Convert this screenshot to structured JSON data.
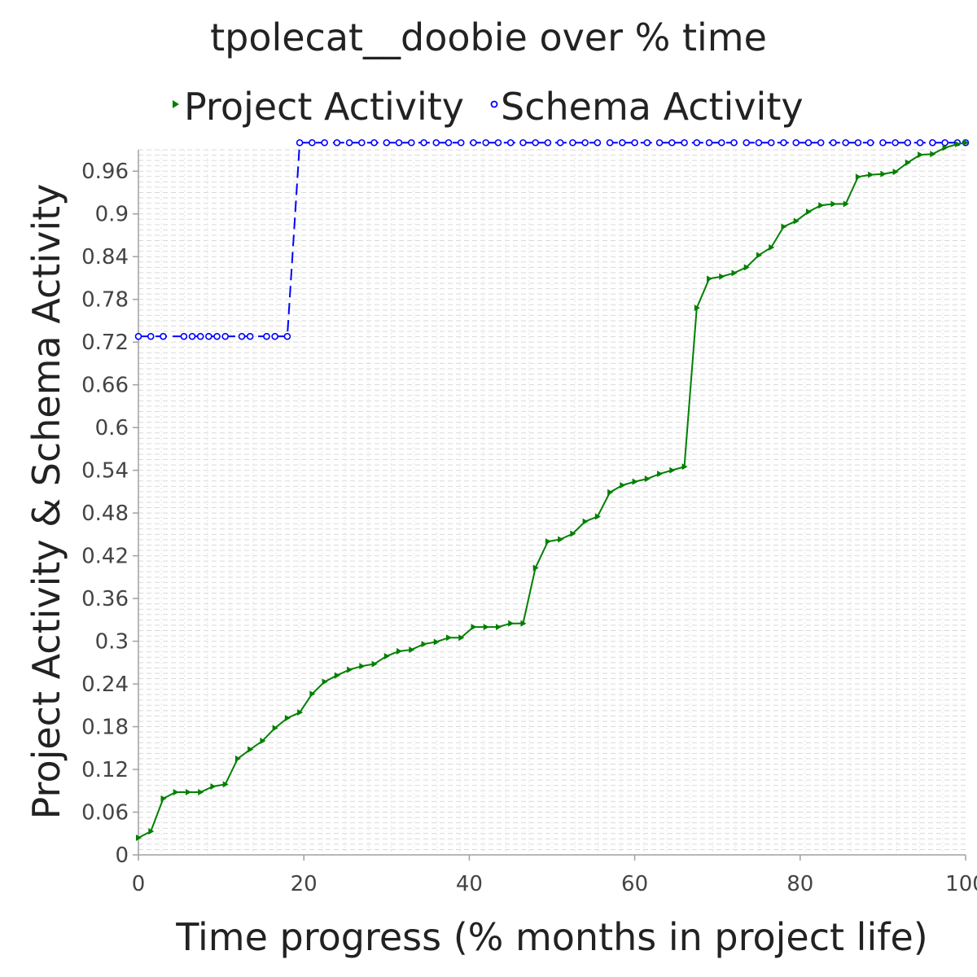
{
  "chart_data": {
    "type": "line",
    "title": "tpolecat__doobie over % time",
    "xlabel": "Time progress (% months in project life)",
    "ylabel": "Project Activity & Schema Activity",
    "xlim": [
      0,
      100
    ],
    "ylim": [
      0,
      0.99
    ],
    "x_ticks": [
      "0",
      "20",
      "40",
      "60",
      "80",
      "100"
    ],
    "y_ticks": [
      "0",
      "0.06",
      "0.12",
      "0.18",
      "0.24",
      "0.3",
      "0.36",
      "0.42",
      "0.48",
      "0.54",
      "0.6",
      "0.66",
      "0.72",
      "0.78",
      "0.84",
      "0.9",
      "0.96"
    ],
    "legend_position": "top",
    "grid": true,
    "series": [
      {
        "name": "Project Activity",
        "color": "#008000",
        "marker": "triangle-right",
        "line_style": "solid",
        "points": [
          [
            0,
            0.024
          ],
          [
            1.5,
            0.033
          ],
          [
            3.0,
            0.079
          ],
          [
            4.5,
            0.088
          ],
          [
            6.0,
            0.088
          ],
          [
            7.5,
            0.088
          ],
          [
            9.0,
            0.096
          ],
          [
            10.5,
            0.099
          ],
          [
            12.0,
            0.135
          ],
          [
            13.5,
            0.148
          ],
          [
            15.0,
            0.16
          ],
          [
            16.5,
            0.178
          ],
          [
            18.0,
            0.192
          ],
          [
            19.5,
            0.2
          ],
          [
            21.0,
            0.226
          ],
          [
            22.5,
            0.243
          ],
          [
            24.0,
            0.252
          ],
          [
            25.5,
            0.26
          ],
          [
            27.0,
            0.265
          ],
          [
            28.5,
            0.268
          ],
          [
            30.0,
            0.279
          ],
          [
            31.5,
            0.286
          ],
          [
            33.0,
            0.288
          ],
          [
            34.5,
            0.296
          ],
          [
            36.0,
            0.299
          ],
          [
            37.5,
            0.305
          ],
          [
            39.0,
            0.305
          ],
          [
            40.5,
            0.32
          ],
          [
            42.0,
            0.32
          ],
          [
            43.5,
            0.32
          ],
          [
            45.0,
            0.325
          ],
          [
            46.5,
            0.325
          ],
          [
            48.0,
            0.403
          ],
          [
            49.5,
            0.44
          ],
          [
            51.0,
            0.443
          ],
          [
            52.5,
            0.451
          ],
          [
            54.0,
            0.468
          ],
          [
            55.5,
            0.475
          ],
          [
            57.0,
            0.509
          ],
          [
            58.5,
            0.519
          ],
          [
            60.0,
            0.524
          ],
          [
            61.5,
            0.528
          ],
          [
            63.0,
            0.535
          ],
          [
            64.5,
            0.54
          ],
          [
            66.0,
            0.545
          ],
          [
            67.5,
            0.768
          ],
          [
            69.0,
            0.809
          ],
          [
            70.5,
            0.812
          ],
          [
            72.0,
            0.817
          ],
          [
            73.5,
            0.825
          ],
          [
            75.0,
            0.842
          ],
          [
            76.5,
            0.853
          ],
          [
            78.0,
            0.882
          ],
          [
            79.5,
            0.89
          ],
          [
            81.0,
            0.903
          ],
          [
            82.5,
            0.912
          ],
          [
            84.0,
            0.914
          ],
          [
            85.5,
            0.914
          ],
          [
            87.0,
            0.952
          ],
          [
            88.5,
            0.955
          ],
          [
            90.0,
            0.956
          ],
          [
            91.5,
            0.959
          ],
          [
            93.0,
            0.972
          ],
          [
            94.5,
            0.983
          ],
          [
            96.0,
            0.984
          ],
          [
            97.5,
            0.993
          ],
          [
            99.0,
            0.998
          ],
          [
            100,
            1.0
          ]
        ]
      },
      {
        "name": "Schema Activity",
        "color": "#0000ff",
        "marker": "circle",
        "line_style": "dashed",
        "points": [
          [
            0,
            0.728
          ],
          [
            1.5,
            0.728
          ],
          [
            3.0,
            0.728
          ],
          [
            5.5,
            0.728
          ],
          [
            6.5,
            0.728
          ],
          [
            7.5,
            0.728
          ],
          [
            8.5,
            0.728
          ],
          [
            9.5,
            0.728
          ],
          [
            10.5,
            0.728
          ],
          [
            12.5,
            0.728
          ],
          [
            13.5,
            0.728
          ],
          [
            15.5,
            0.728
          ],
          [
            16.5,
            0.728
          ],
          [
            18.0,
            0.728
          ],
          [
            19.5,
            1.0
          ],
          [
            21.0,
            1.0
          ],
          [
            22.5,
            1.0
          ],
          [
            24.0,
            1.0
          ],
          [
            25.5,
            1.0
          ],
          [
            27.0,
            1.0
          ],
          [
            28.5,
            1.0
          ],
          [
            30.0,
            1.0
          ],
          [
            31.5,
            1.0
          ],
          [
            33.0,
            1.0
          ],
          [
            34.5,
            1.0
          ],
          [
            36.0,
            1.0
          ],
          [
            37.5,
            1.0
          ],
          [
            39.0,
            1.0
          ],
          [
            40.5,
            1.0
          ],
          [
            42.0,
            1.0
          ],
          [
            43.5,
            1.0
          ],
          [
            45.0,
            1.0
          ],
          [
            46.5,
            1.0
          ],
          [
            48.0,
            1.0
          ],
          [
            49.5,
            1.0
          ],
          [
            51.0,
            1.0
          ],
          [
            52.5,
            1.0
          ],
          [
            54.0,
            1.0
          ],
          [
            55.5,
            1.0
          ],
          [
            57.0,
            1.0
          ],
          [
            58.5,
            1.0
          ],
          [
            60.0,
            1.0
          ],
          [
            61.5,
            1.0
          ],
          [
            63.0,
            1.0
          ],
          [
            64.5,
            1.0
          ],
          [
            66.0,
            1.0
          ],
          [
            67.5,
            1.0
          ],
          [
            69.0,
            1.0
          ],
          [
            70.5,
            1.0
          ],
          [
            72.0,
            1.0
          ],
          [
            73.5,
            1.0
          ],
          [
            75.0,
            1.0
          ],
          [
            76.5,
            1.0
          ],
          [
            78.0,
            1.0
          ],
          [
            79.5,
            1.0
          ],
          [
            81.0,
            1.0
          ],
          [
            82.5,
            1.0
          ],
          [
            84.0,
            1.0
          ],
          [
            85.5,
            1.0
          ],
          [
            87.0,
            1.0
          ],
          [
            88.5,
            1.0
          ],
          [
            90.0,
            1.0
          ],
          [
            91.5,
            1.0
          ],
          [
            93.0,
            1.0
          ],
          [
            94.5,
            1.0
          ],
          [
            96.0,
            1.0
          ],
          [
            97.5,
            1.0
          ],
          [
            99.0,
            1.0
          ],
          [
            100,
            1.0
          ]
        ]
      }
    ]
  }
}
